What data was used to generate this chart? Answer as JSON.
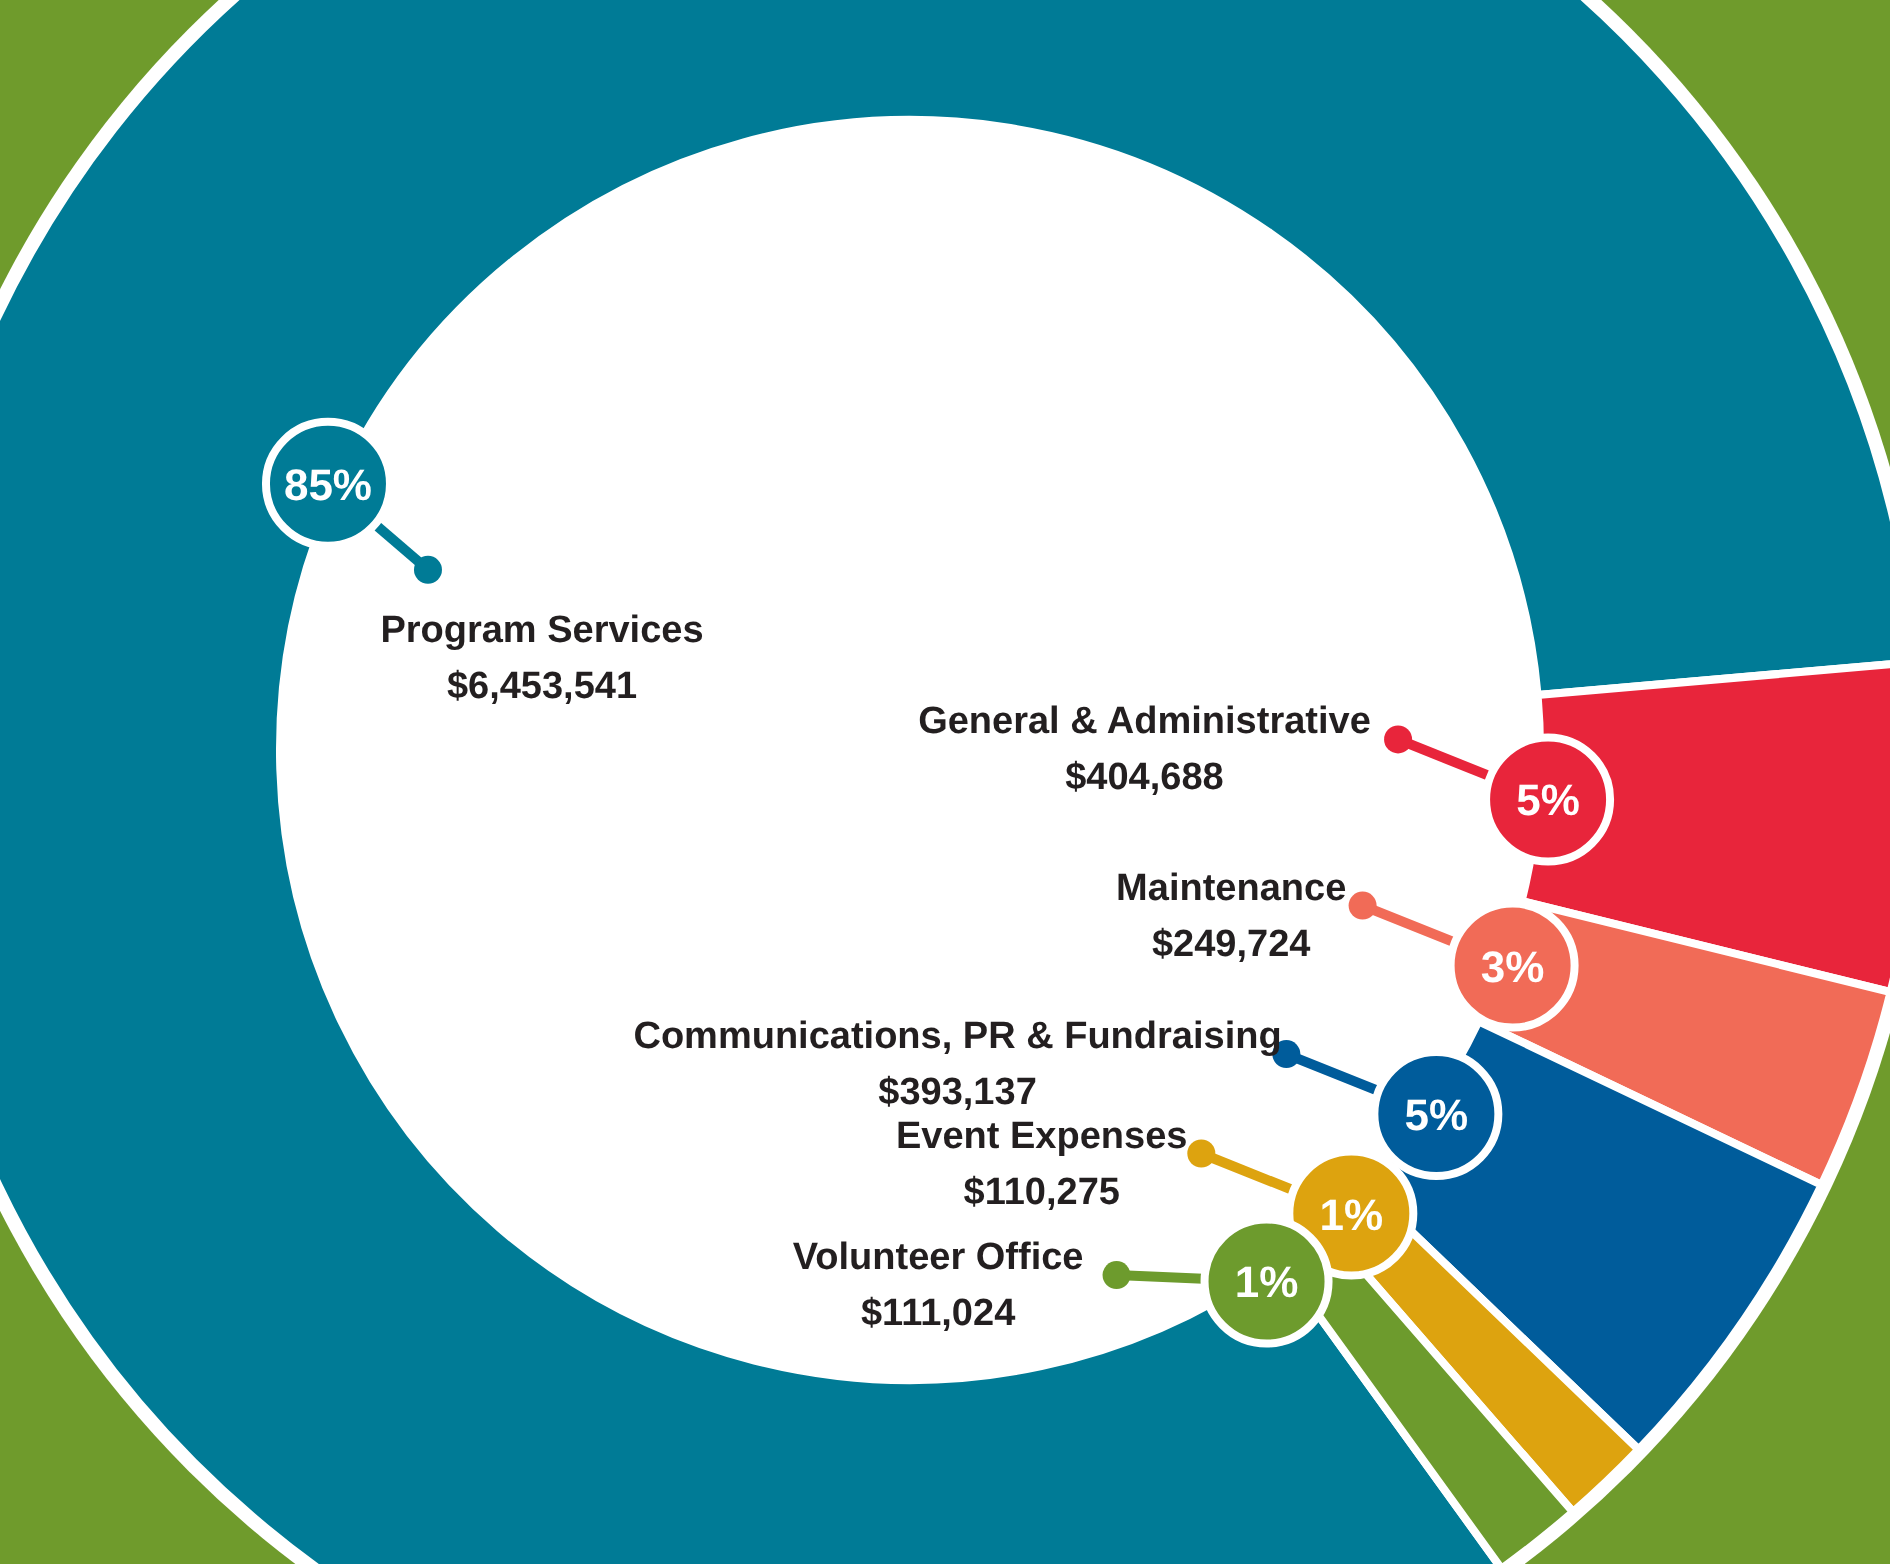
{
  "chart_data": {
    "type": "donut",
    "categories": [
      "Program Services",
      "General & Administrative",
      "Maintenance",
      "Communications, PR & Fundraising",
      "Event Expenses",
      "Volunteer Office"
    ],
    "values": [
      6453541,
      404688,
      249724,
      393137,
      110275,
      111024
    ],
    "colors": [
      "#007b96",
      "#e8253b",
      "#f16b57",
      "#005c9b",
      "#dda30f",
      "#6d9b2d"
    ],
    "value_labels": [
      "$6,453,541",
      "$404,688",
      "$249,724",
      "$393,137",
      "$110,275",
      "$111,024"
    ],
    "annotations": [
      "85%",
      "5%",
      "3%",
      "5%",
      "1%",
      "1%"
    ],
    "legend": "bottom right"
  }
}
